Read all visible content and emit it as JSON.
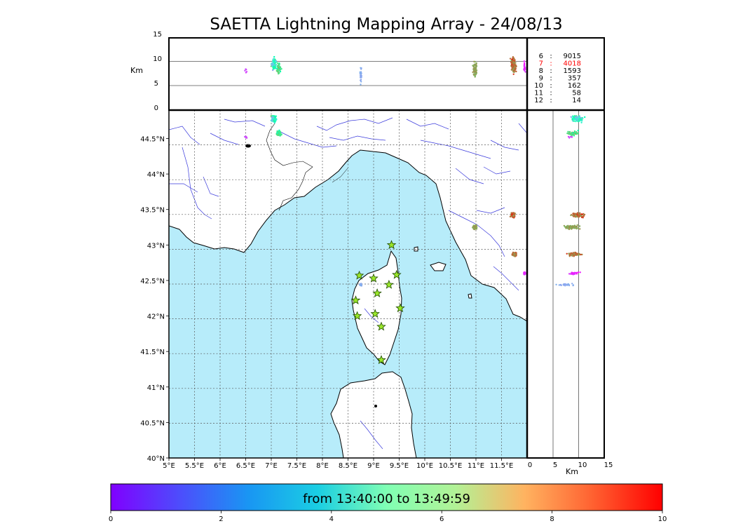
{
  "title": "SAETTA Lightning Mapping Array - 24/08/13",
  "colors": {
    "sea": "#b7ecfa",
    "land": "#ffffff",
    "coast": "#000000",
    "rivers": "#3a3adc",
    "grid": "#555555",
    "station_fill": "#9ae62a",
    "station_edge": "#1e4a00",
    "highlight_count": "#ff0000"
  },
  "panels": {
    "altitude_top": {
      "ylabel": "Km",
      "yticks": [
        "15",
        "10",
        "5",
        "0"
      ]
    },
    "altitude_side": {
      "xlabel": "Km",
      "xticks": [
        "0",
        "5",
        "10",
        "15"
      ]
    }
  },
  "stations_count_table": [
    {
      "stations": "6",
      "count": "9015",
      "highlight": false
    },
    {
      "stations": "7",
      "count": "4018",
      "highlight": true
    },
    {
      "stations": "8",
      "count": "1593",
      "highlight": false
    },
    {
      "stations": "9",
      "count": "357",
      "highlight": false
    },
    {
      "stations": "10",
      "count": "162",
      "highlight": false
    },
    {
      "stations": "11",
      "count": "58",
      "highlight": false
    },
    {
      "stations": "12",
      "count": "14",
      "highlight": false
    }
  ],
  "colorbar": {
    "label": "from 13:40:00 to 13:49:59",
    "ticks": [
      "0",
      "2",
      "4",
      "6",
      "8",
      "10"
    ],
    "colormap": "rainbow"
  },
  "chart_data": {
    "type": "scatter",
    "title": "SAETTA Lightning Mapping Array - 24/08/13",
    "map": {
      "xlim": [
        5,
        12.0
      ],
      "ylim": [
        40,
        44.9
      ],
      "xticks": [
        5,
        5.5,
        6,
        6.5,
        7,
        7.5,
        8,
        8.5,
        9,
        9.5,
        10,
        10.5,
        11,
        11.5
      ],
      "xticklabels": [
        "5°E",
        "5.5°E",
        "6°E",
        "6.5°E",
        "7°E",
        "7.5°E",
        "8°E",
        "8.5°E",
        "9°E",
        "9.5°E",
        "10°E",
        "10.5°E",
        "11°E",
        "11.5°E"
      ],
      "yticks": [
        40,
        40.5,
        41,
        41.5,
        42,
        42.5,
        43,
        43.5,
        44,
        44.5
      ],
      "yticklabels": [
        "40°N",
        "40.5°N",
        "41°N",
        "41.5°N",
        "42°N",
        "42.5°N",
        "43°N",
        "43.5°N",
        "44°N",
        "44.5°N"
      ],
      "grid": true
    },
    "altitude_ylim": [
      0,
      15
    ],
    "color_scale": {
      "min": 0,
      "max": 10,
      "units": "minutes from 13:40:00"
    },
    "stations": [
      {
        "lon": 9.35,
        "lat": 43.0
      },
      {
        "lon": 8.72,
        "lat": 42.57
      },
      {
        "lon": 9.0,
        "lat": 42.53
      },
      {
        "lon": 9.45,
        "lat": 42.58
      },
      {
        "lon": 9.3,
        "lat": 42.44
      },
      {
        "lon": 9.07,
        "lat": 42.32
      },
      {
        "lon": 8.65,
        "lat": 42.22
      },
      {
        "lon": 9.52,
        "lat": 42.11
      },
      {
        "lon": 8.68,
        "lat": 42.0
      },
      {
        "lon": 9.03,
        "lat": 42.03
      },
      {
        "lon": 9.15,
        "lat": 41.85
      },
      {
        "lon": 9.15,
        "lat": 41.38
      }
    ],
    "flash_clusters": [
      {
        "lon": 7.05,
        "lat": 44.78,
        "lon_spread": 0.07,
        "lat_spread": 0.06,
        "alt": 9.5,
        "alt_spread": 1.8,
        "t": 4.5,
        "t_spread": 3.5,
        "n": 70
      },
      {
        "lon": 7.15,
        "lat": 44.57,
        "lon_spread": 0.06,
        "lat_spread": 0.05,
        "alt": 8.5,
        "alt_spread": 1.5,
        "t": 6.5,
        "t_spread": 2.5,
        "n": 50
      },
      {
        "lon": 6.5,
        "lat": 44.52,
        "lon_spread": 0.03,
        "lat_spread": 0.02,
        "alt": 8.0,
        "alt_spread": 1.0,
        "t": 1.0,
        "t_spread": 0.5,
        "n": 6
      },
      {
        "lon": 8.75,
        "lat": 42.44,
        "lon_spread": 0.02,
        "lat_spread": 0.02,
        "alt": 7.0,
        "alt_spread": 3.0,
        "t": 2.3,
        "t_spread": 0.3,
        "n": 25
      },
      {
        "lon": 10.98,
        "lat": 43.25,
        "lon_spread": 0.06,
        "lat_spread": 0.04,
        "alt": 8.5,
        "alt_spread": 2.0,
        "t": 7.8,
        "t_spread": 0.8,
        "n": 70
      },
      {
        "lon": 11.72,
        "lat": 43.42,
        "lon_spread": 0.06,
        "lat_spread": 0.04,
        "alt": 9.5,
        "alt_spread": 2.0,
        "t": 8.5,
        "t_spread": 1.5,
        "n": 90
      },
      {
        "lon": 11.75,
        "lat": 42.87,
        "lon_spread": 0.05,
        "lat_spread": 0.04,
        "alt": 9.0,
        "alt_spread": 2.0,
        "t": 8.5,
        "t_spread": 1.5,
        "n": 60
      },
      {
        "lon": 11.95,
        "lat": 42.6,
        "lon_spread": 0.02,
        "lat_spread": 0.02,
        "alt": 9.0,
        "alt_spread": 1.5,
        "t": 0.5,
        "t_spread": 0.5,
        "n": 25
      }
    ]
  }
}
